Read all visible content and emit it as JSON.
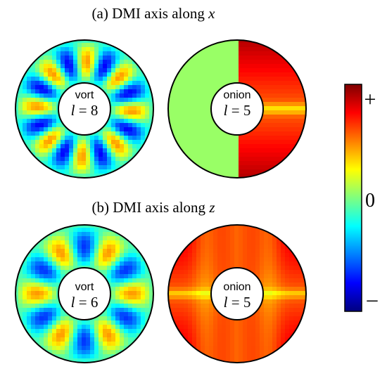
{
  "panels": [
    {
      "title_prefix": "(a) DMI axis along ",
      "title_var": "x",
      "rings": [
        {
          "label": "vort",
          "l_symbol": "l",
          "l_text": " = 8",
          "pattern": "vort-x"
        },
        {
          "label": "onion",
          "l_symbol": "l",
          "l_text": " = 5",
          "pattern": "onion-x"
        }
      ]
    },
    {
      "title_prefix": "(b) DMI axis along ",
      "title_var": "z",
      "rings": [
        {
          "label": "vort",
          "l_symbol": "l",
          "l_text": " = 6",
          "pattern": "vort-z"
        },
        {
          "label": "onion",
          "l_symbol": "l",
          "l_text": " = 5",
          "pattern": "onion-z"
        }
      ]
    }
  ],
  "colorbar": {
    "colormap": "jet",
    "colors": [
      "#00007f",
      "#0000ff",
      "#007fff",
      "#00ffff",
      "#7fff7f",
      "#ffff00",
      "#ff7f00",
      "#ff0000",
      "#7f0000"
    ],
    "label_max": "+",
    "label_mid": "0",
    "label_min": "–"
  }
}
